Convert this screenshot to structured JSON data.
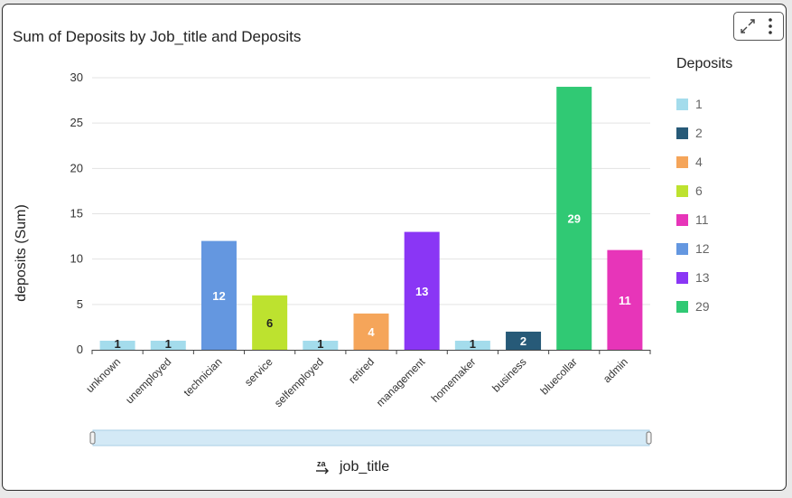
{
  "title": "Sum of Deposits by Job_title and Deposits",
  "actions": {
    "expand_icon": "expand-icon",
    "menu_icon": "more-vertical-icon"
  },
  "legend": {
    "title": "Deposits",
    "items": [
      {
        "label": "1",
        "color": "#a4dcec"
      },
      {
        "label": "2",
        "color": "#275a78"
      },
      {
        "label": "4",
        "color": "#f5a55a"
      },
      {
        "label": "6",
        "color": "#bde22f"
      },
      {
        "label": "11",
        "color": "#e735b9"
      },
      {
        "label": "12",
        "color": "#6497e0"
      },
      {
        "label": "13",
        "color": "#8a36f5"
      },
      {
        "label": "29",
        "color": "#30c974"
      }
    ]
  },
  "x_axis_title": "job_title",
  "sort_icon": "sort-za-icon",
  "chart_data": {
    "type": "bar",
    "xlabel": "job_title",
    "ylabel": "deposits (Sum)",
    "ylim": [
      0,
      30
    ],
    "yticks": [
      0,
      5,
      10,
      15,
      20,
      25,
      30
    ],
    "grid": true,
    "legend_position": "right",
    "categories": [
      "unknown",
      "unemployed",
      "technician",
      "service",
      "selfemployed",
      "retired",
      "management",
      "homemaker",
      "business",
      "bluecollar",
      "admin"
    ],
    "values": [
      1,
      1,
      12,
      6,
      1,
      4,
      13,
      1,
      2,
      29,
      11
    ],
    "colors": [
      "#a4dcec",
      "#a4dcec",
      "#6497e0",
      "#bde22f",
      "#a4dcec",
      "#f5a55a",
      "#8a36f5",
      "#a4dcec",
      "#275a78",
      "#30c974",
      "#e735b9"
    ],
    "label_colors": [
      "#222222",
      "#222222",
      "#ffffff",
      "#222222",
      "#222222",
      "#ffffff",
      "#ffffff",
      "#222222",
      "#ffffff",
      "#ffffff",
      "#ffffff"
    ]
  }
}
